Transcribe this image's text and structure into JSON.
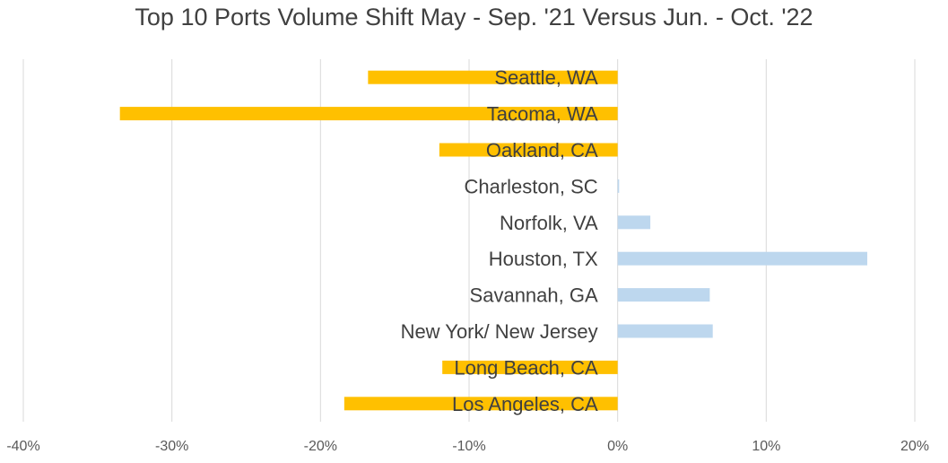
{
  "chart_data": {
    "type": "bar",
    "orientation": "horizontal",
    "title": "Top 10 Ports Volume Shift May - Sep. '21 Versus Jun. - Oct. '22",
    "xlabel": "",
    "ylabel": "",
    "xlim": [
      -40,
      20
    ],
    "xticks": [
      -40,
      -30,
      -20,
      -10,
      0,
      10,
      20
    ],
    "xtick_labels": [
      "-40%",
      "-30%",
      "-20%",
      "-10%",
      "0%",
      "10%",
      "20%"
    ],
    "grid": "vertical",
    "legend": "none",
    "categories": [
      "Seattle, WA",
      "Tacoma, WA",
      "Oakland, CA",
      "Charleston, SC",
      "Norfolk, VA",
      "Houston, TX",
      "Savannah, GA",
      "New York/ New Jersey",
      "Long Beach, CA",
      "Los Angeles, CA"
    ],
    "values": [
      -16.8,
      -33.5,
      -12.0,
      0.1,
      2.2,
      16.8,
      6.2,
      6.4,
      -11.8,
      -18.4
    ],
    "colors": {
      "negative": "#FFC000",
      "positive": "#BDD7EE",
      "grid": "#D9D9D9"
    }
  }
}
